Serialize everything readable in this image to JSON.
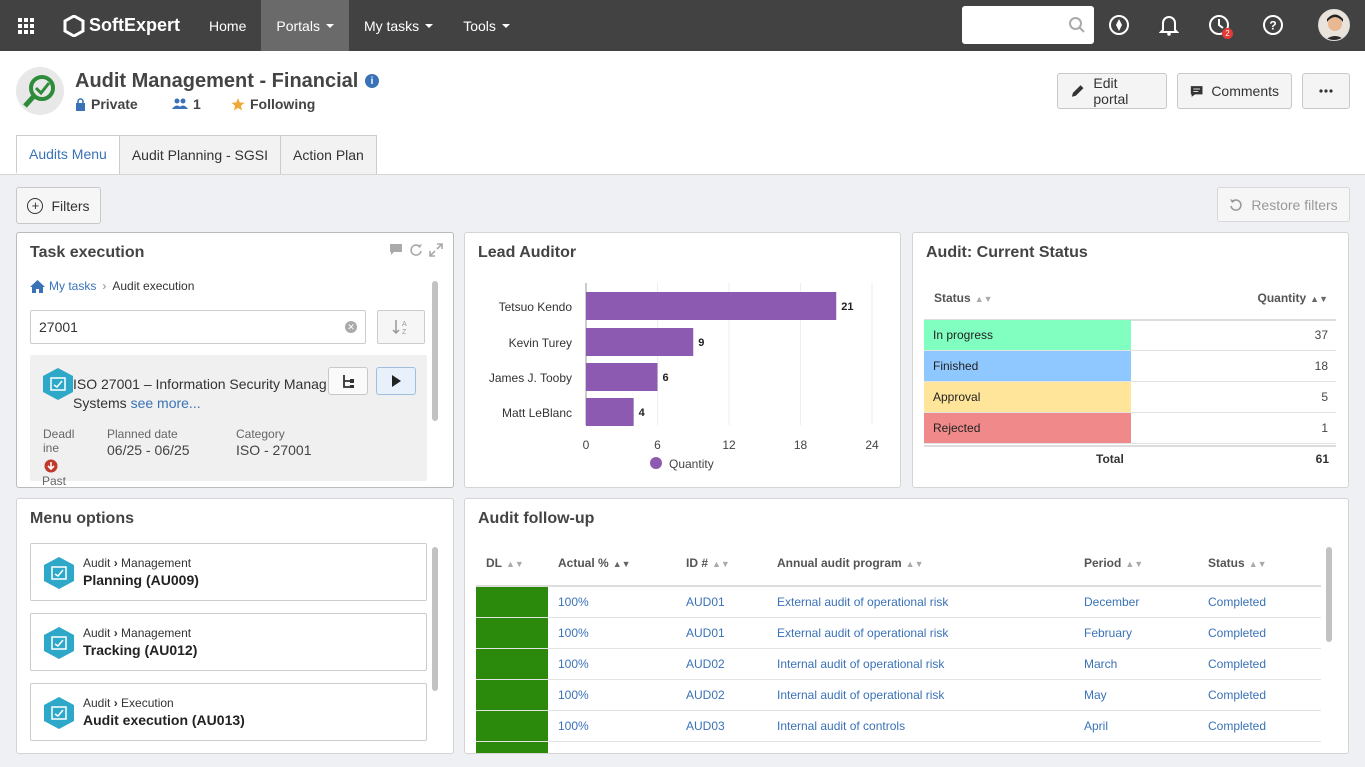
{
  "topbar": {
    "brand": "SoftExpert",
    "nav": [
      "Home",
      "Portals",
      "My tasks",
      "Tools"
    ],
    "notification_badge": "2"
  },
  "portal": {
    "title": "Audit Management - Financial",
    "privacy": "Private",
    "members": "1",
    "follow": "Following",
    "edit_label": "Edit portal",
    "comments_label": "Comments",
    "tabs": [
      "Audits Menu",
      "Audit Planning - SGSI",
      "Action Plan"
    ],
    "filters_label": "Filters",
    "restore_label": "Restore filters"
  },
  "task_execution": {
    "title": "Task execution",
    "breadcrumb_root": "My tasks",
    "breadcrumb_current": "Audit execution",
    "search_value": "27001",
    "task_line1": "ISO 27001 – Information Security Manag",
    "task_line2": "Systems",
    "see_more": "see more...",
    "deadline_label": "Deadl ine",
    "deadline_state": "Past",
    "planned_label": "Planned date",
    "planned_value": "06/25 - 06/25",
    "category_label": "Category",
    "category_value": "ISO - 27001"
  },
  "lead_auditor": {
    "title": "Lead Auditor",
    "chart_data": {
      "type": "bar",
      "orientation": "horizontal",
      "categories": [
        "Tetsuo Kendo",
        "Kevin Turey",
        "James J. Tooby",
        "Matt LeBlanc"
      ],
      "series": [
        {
          "name": "Quantity",
          "values": [
            21,
            9,
            6,
            4
          ],
          "color": "#8c5bb1"
        }
      ],
      "xticks": [
        "0",
        "6",
        "12",
        "18",
        "24"
      ],
      "xlim": [
        0,
        24
      ],
      "legend": "bottom"
    }
  },
  "audit_status": {
    "title": "Audit: Current Status",
    "col_status": "Status",
    "col_quantity": "Quantity",
    "rows": [
      {
        "label": "In progress",
        "qty": "37",
        "color": "#80ffc0"
      },
      {
        "label": "Finished",
        "qty": "18",
        "color": "#8ec8ff"
      },
      {
        "label": "Approval",
        "qty": "5",
        "color": "#ffe59a"
      },
      {
        "label": "Rejected",
        "qty": "1",
        "color": "#f08a8a"
      }
    ],
    "total_label": "Total",
    "total_value": "61"
  },
  "menu_options": {
    "title": "Menu options",
    "items": [
      {
        "root": "Audit",
        "section": "Management",
        "name": "Planning (AU009)"
      },
      {
        "root": "Audit",
        "section": "Management",
        "name": "Tracking (AU012)"
      },
      {
        "root": "Audit",
        "section": "Execution",
        "name": "Audit execution (AU013)"
      }
    ]
  },
  "followup": {
    "title": "Audit follow-up",
    "columns": [
      "DL",
      "Actual %",
      "ID #",
      "Annual audit program",
      "Period",
      "Status"
    ],
    "rows": [
      {
        "actual": "100%",
        "id": "AUD01",
        "program": "External audit of operational risk",
        "period": "December",
        "status": "Completed"
      },
      {
        "actual": "100%",
        "id": "AUD01",
        "program": "External audit of operational risk",
        "period": "February",
        "status": "Completed"
      },
      {
        "actual": "100%",
        "id": "AUD02",
        "program": "Internal audit of operational risk",
        "period": "March",
        "status": "Completed"
      },
      {
        "actual": "100%",
        "id": "AUD02",
        "program": "Internal audit of operational risk",
        "period": "May",
        "status": "Completed"
      },
      {
        "actual": "100%",
        "id": "AUD03",
        "program": "Internal audit of controls",
        "period": "April",
        "status": "Completed"
      }
    ]
  },
  "colors": {
    "accent": "#3a72b7",
    "topbar": "#424242",
    "dl_green": "#2b8a0c"
  }
}
